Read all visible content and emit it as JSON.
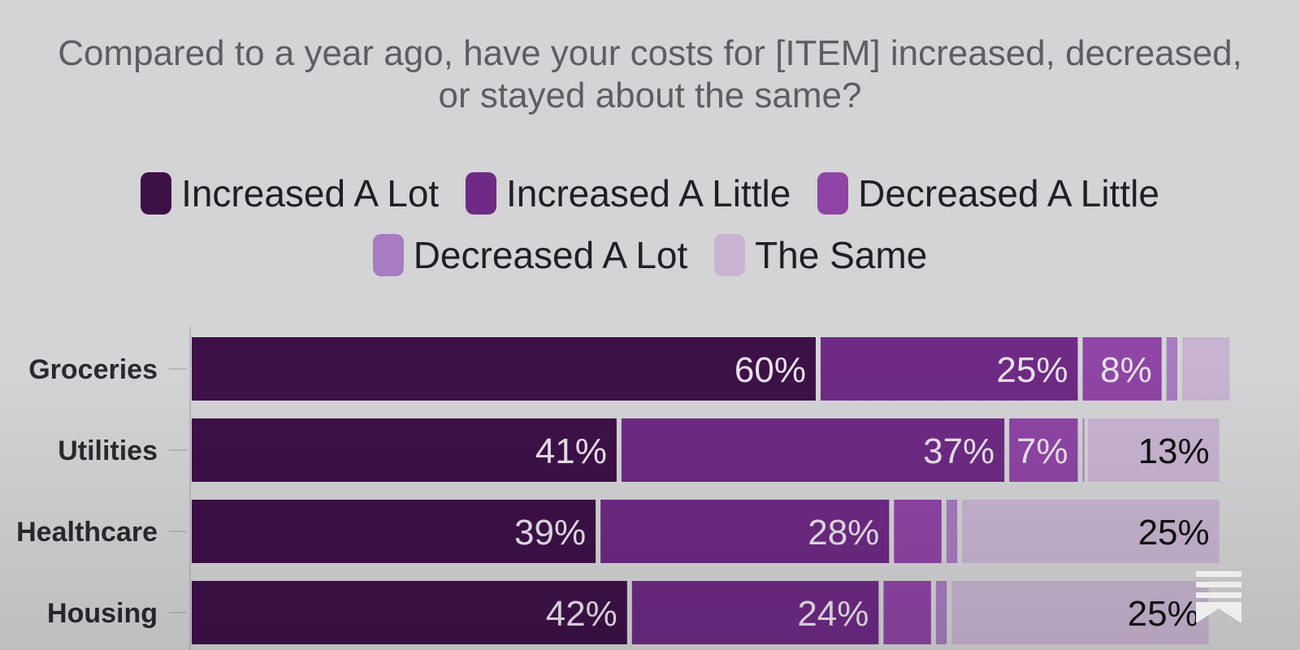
{
  "chart_data": {
    "type": "bar",
    "orientation": "horizontal",
    "stacked": true,
    "title_lines": [
      "Compared to a year ago, have your costs for [ITEM] increased, decreased,",
      "or stayed about the same?"
    ],
    "legend_position": "top",
    "categories": [
      "Groceries",
      "Utilities",
      "Healthcare",
      "Housing"
    ],
    "series": [
      {
        "name": "Increased A Lot",
        "color": "#3d1148",
        "values": [
          60,
          41,
          39,
          42
        ],
        "labels": [
          "60%",
          "41%",
          "39%",
          "42%"
        ]
      },
      {
        "name": "Increased A Little",
        "color": "#6e2a84",
        "values": [
          25,
          37,
          28,
          24
        ],
        "labels": [
          "25%",
          "37%",
          "28%",
          "24%"
        ]
      },
      {
        "name": "Decreased A Little",
        "color": "#8f45a5",
        "values": [
          8,
          7,
          5,
          5
        ],
        "labels": [
          "8%",
          "7%",
          "",
          ""
        ]
      },
      {
        "name": "Decreased A Lot",
        "color": "#a77cc0",
        "values": [
          1.5,
          0.5,
          1.5,
          1.5
        ],
        "labels": [
          "",
          "",
          "",
          ""
        ]
      },
      {
        "name": "The Same",
        "color": "#c8b4d1",
        "values": [
          5,
          13,
          25,
          25
        ],
        "labels": [
          "",
          "13%",
          "25%",
          "25%"
        ]
      }
    ],
    "label_colors": [
      "#e8e2ea",
      "#e8e2ea",
      "#e8e2ea",
      "#e8e2ea",
      "#111111"
    ],
    "xlim": [
      0,
      100
    ],
    "grid": false
  }
}
